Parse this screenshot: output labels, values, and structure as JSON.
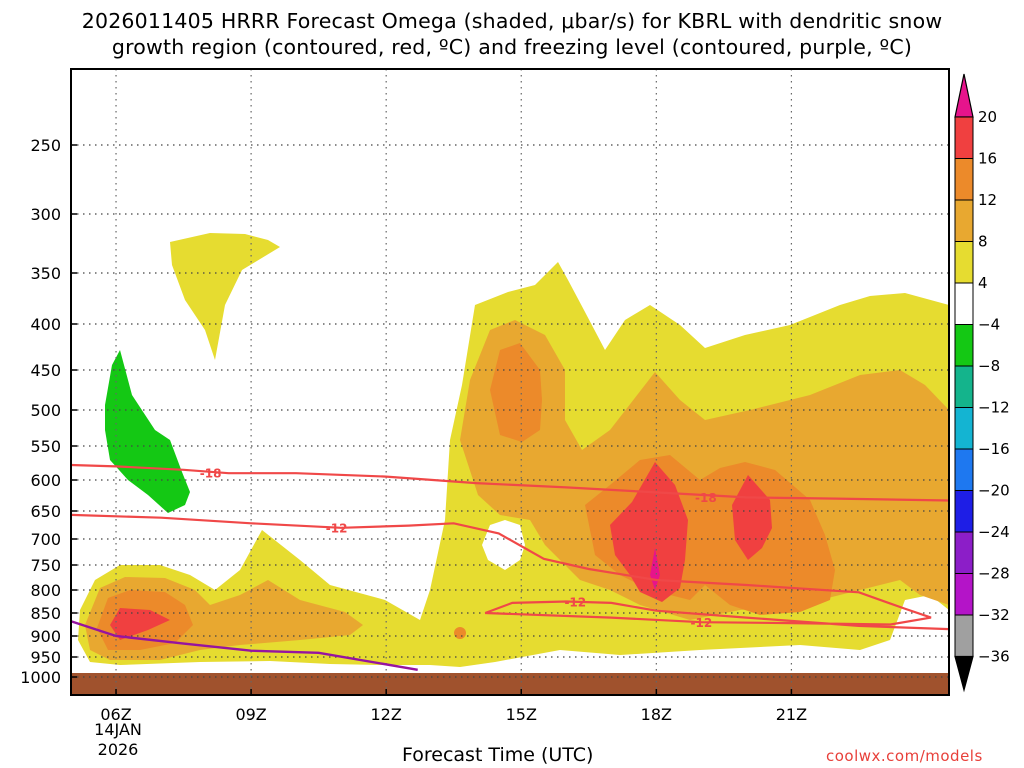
{
  "chart_data": {
    "type": "heatmap",
    "title_line1": "2026011405 HRRR Forecast Omega (shaded, μbar/s) for KBRL with dendritic snow",
    "title_line2": "growth region (contoured, red, ºC) and freezing level (contoured, purple, ºC)",
    "xlabel": "Forecast Time (UTC)",
    "credit": "coolwx.com/models",
    "x_range_hours": [
      5,
      24.5
    ],
    "y_range_hPa": [
      1000,
      200
    ],
    "x_ticks": [
      {
        "hour": 6,
        "label": "06Z"
      },
      {
        "hour": 9,
        "label": "09Z"
      },
      {
        "hour": 12,
        "label": "12Z"
      },
      {
        "hour": 15,
        "label": "15Z"
      },
      {
        "hour": 18,
        "label": "18Z"
      },
      {
        "hour": 21,
        "label": "21Z"
      }
    ],
    "date_line1": "14JAN",
    "date_line2": "2026",
    "y_ticks": [
      250,
      300,
      350,
      400,
      450,
      500,
      550,
      600,
      650,
      700,
      750,
      800,
      850,
      900,
      950,
      1000
    ],
    "colorbar": {
      "labels": [
        "20",
        "16",
        "12",
        "8",
        "4",
        "−4",
        "−8",
        "−12",
        "−16",
        "−20",
        "−24",
        "−28",
        "−32",
        "−36"
      ],
      "colors": [
        "#e6148c",
        "#f04040",
        "#ec8a2a",
        "#e8a830",
        "#e6dc30",
        "#ffffff",
        "#14c814",
        "#14b48c",
        "#14b4d2",
        "#1e78f0",
        "#1e1ee6",
        "#8c1ec8",
        "#b414c8",
        "#a0a0a0",
        "#000000"
      ]
    },
    "contours": [
      {
        "name": "dendritic-18",
        "label": "-18",
        "color": "#f04848",
        "points": [
          [
            5,
            578
          ],
          [
            6,
            580
          ],
          [
            7.5,
            585
          ],
          [
            8.5,
            590
          ],
          [
            10,
            590
          ],
          [
            12,
            595
          ],
          [
            14,
            605
          ],
          [
            16,
            612
          ],
          [
            18,
            620
          ],
          [
            20,
            628
          ],
          [
            22,
            630
          ],
          [
            24.5,
            633
          ]
        ]
      },
      {
        "name": "dendritic-12-upper",
        "label": "-12",
        "color": "#f04848",
        "points": [
          [
            5,
            657
          ],
          [
            7,
            662
          ],
          [
            9,
            672
          ],
          [
            11,
            680
          ],
          [
            12.5,
            676
          ],
          [
            13.5,
            672
          ],
          [
            14.5,
            690
          ],
          [
            15.5,
            738
          ],
          [
            16.5,
            758
          ],
          [
            18,
            780
          ],
          [
            20,
            790
          ],
          [
            22.5,
            805
          ],
          [
            23.5,
            840
          ],
          [
            24.1,
            860
          ],
          [
            23.2,
            875
          ],
          [
            21,
            872
          ],
          [
            19,
            870
          ],
          [
            17,
            860
          ],
          [
            14.2,
            850
          ],
          [
            14.8,
            828
          ],
          [
            16,
            825
          ],
          [
            17,
            828
          ],
          [
            18,
            845
          ],
          [
            20,
            860
          ],
          [
            22.5,
            878
          ],
          [
            24.5,
            885
          ]
        ]
      }
    ],
    "freezing_level": {
      "name": "freezing-level",
      "color": "#9614a0",
      "points": [
        [
          5,
          868
        ],
        [
          6,
          900
        ],
        [
          7.5,
          918
        ],
        [
          9,
          935
        ],
        [
          10.5,
          940
        ],
        [
          12.7,
          982
        ]
      ]
    }
  }
}
